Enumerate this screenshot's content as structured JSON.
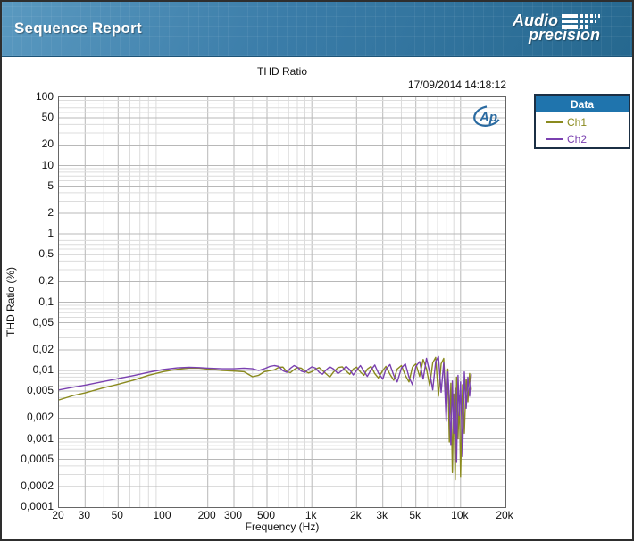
{
  "header": {
    "title": "Sequence Report",
    "brand_line1": "Audio",
    "brand_line2": "precision"
  },
  "chart": {
    "title": "THD Ratio",
    "timestamp": "17/09/2014 14:18:12",
    "ylabel": "THD Ratio (%)",
    "xlabel": "Frequency (Hz)",
    "watermark": "Ap"
  },
  "legend": {
    "title": "Data",
    "entries": [
      {
        "label": "Ch1",
        "color": "#8a8a1e"
      },
      {
        "label": "Ch2",
        "color": "#7a40b0"
      }
    ]
  },
  "colors": {
    "accent_blue": "#1f74ad",
    "grid_minor": "#dcdcdc",
    "grid_major": "#b8b8b8",
    "plot_border": "#666666",
    "watermark_blue": "#2a6aa0"
  },
  "chart_data": {
    "type": "line",
    "title": "THD Ratio",
    "xlabel": "Frequency (Hz)",
    "ylabel": "THD Ratio (%)",
    "x_scale": "log",
    "y_scale": "log",
    "xlim": [
      20,
      20000
    ],
    "ylim": [
      0.0001,
      100
    ],
    "grid": true,
    "legend_position": "outside-right",
    "x_ticks": [
      [
        20,
        "20"
      ],
      [
        30,
        "30"
      ],
      [
        50,
        "50"
      ],
      [
        100,
        "100"
      ],
      [
        200,
        "200"
      ],
      [
        300,
        "300"
      ],
      [
        500,
        "500"
      ],
      [
        1000,
        "1k"
      ],
      [
        2000,
        "2k"
      ],
      [
        3000,
        "3k"
      ],
      [
        5000,
        "5k"
      ],
      [
        10000,
        "10k"
      ],
      [
        20000,
        "20k"
      ]
    ],
    "y_ticks": [
      [
        100,
        "100"
      ],
      [
        50,
        "50"
      ],
      [
        20,
        "20"
      ],
      [
        10,
        "10"
      ],
      [
        5,
        "5"
      ],
      [
        2,
        "2"
      ],
      [
        1,
        "1"
      ],
      [
        0.5,
        "0,5"
      ],
      [
        0.2,
        "0,2"
      ],
      [
        0.1,
        "0,1"
      ],
      [
        0.05,
        "0,05"
      ],
      [
        0.02,
        "0,02"
      ],
      [
        0.01,
        "0,01"
      ],
      [
        0.005,
        "0,005"
      ],
      [
        0.002,
        "0,002"
      ],
      [
        0.001,
        "0,001"
      ],
      [
        0.0005,
        "0,0005"
      ],
      [
        0.0002,
        "0,0002"
      ],
      [
        0.0001,
        "0,0001"
      ]
    ],
    "series": [
      {
        "name": "Ch1",
        "color": "#8a8a1e",
        "points": [
          [
            20,
            0.0037
          ],
          [
            25,
            0.0043
          ],
          [
            30,
            0.0047
          ],
          [
            40,
            0.0056
          ],
          [
            50,
            0.0063
          ],
          [
            63,
            0.0072
          ],
          [
            80,
            0.0085
          ],
          [
            100,
            0.0096
          ],
          [
            125,
            0.0104
          ],
          [
            150,
            0.0108
          ],
          [
            175,
            0.0108
          ],
          [
            200,
            0.0105
          ],
          [
            250,
            0.01
          ],
          [
            300,
            0.0098
          ],
          [
            350,
            0.0096
          ],
          [
            400,
            0.0081
          ],
          [
            440,
            0.0085
          ],
          [
            480,
            0.0096
          ],
          [
            520,
            0.0099
          ],
          [
            560,
            0.0102
          ],
          [
            600,
            0.0111
          ],
          [
            640,
            0.0112
          ],
          [
            680,
            0.0096
          ],
          [
            720,
            0.0093
          ],
          [
            760,
            0.0103
          ],
          [
            800,
            0.011
          ],
          [
            850,
            0.0108
          ],
          [
            900,
            0.0098
          ],
          [
            950,
            0.0092
          ],
          [
            1000,
            0.0096
          ],
          [
            1060,
            0.0105
          ],
          [
            1120,
            0.011
          ],
          [
            1180,
            0.01
          ],
          [
            1250,
            0.0089
          ],
          [
            1320,
            0.008
          ],
          [
            1400,
            0.0095
          ],
          [
            1500,
            0.011
          ],
          [
            1600,
            0.0113
          ],
          [
            1700,
            0.0098
          ],
          [
            1800,
            0.0088
          ],
          [
            1900,
            0.0105
          ],
          [
            2000,
            0.0112
          ],
          [
            2120,
            0.0095
          ],
          [
            2240,
            0.0085
          ],
          [
            2360,
            0.0105
          ],
          [
            2500,
            0.0115
          ],
          [
            2650,
            0.009
          ],
          [
            2800,
            0.0078
          ],
          [
            3000,
            0.01
          ],
          [
            3150,
            0.0115
          ],
          [
            3350,
            0.0088
          ],
          [
            3550,
            0.0072
          ],
          [
            3750,
            0.0105
          ],
          [
            4000,
            0.0118
          ],
          [
            4250,
            0.0085
          ],
          [
            4500,
            0.0068
          ],
          [
            4750,
            0.0112
          ],
          [
            5000,
            0.0125
          ],
          [
            5300,
            0.0082
          ],
          [
            5600,
            0.0145
          ],
          [
            5900,
            0.0105
          ],
          [
            6200,
            0.006
          ],
          [
            6500,
            0.013
          ],
          [
            6800,
            0.0155
          ],
          [
            7100,
            0.0042
          ],
          [
            7400,
            0.0125
          ],
          [
            7700,
            0.015
          ],
          [
            8000,
            0.0028
          ],
          [
            8200,
            0.0105
          ],
          [
            8400,
            0.0009
          ],
          [
            8600,
            0.0065
          ],
          [
            8800,
            0.00032
          ],
          [
            9000,
            0.0045
          ],
          [
            9200,
            0.00025
          ],
          [
            9400,
            0.008
          ],
          [
            9600,
            0.001
          ],
          [
            9800,
            0.0042
          ],
          [
            10000,
            0.00028
          ],
          [
            10300,
            0.0062
          ],
          [
            10600,
            0.0012
          ],
          [
            10900,
            0.0075
          ],
          [
            11200,
            0.0035
          ],
          [
            11500,
            0.009
          ],
          [
            11800,
            0.0052
          ]
        ]
      },
      {
        "name": "Ch2",
        "color": "#7a40b0",
        "points": [
          [
            20,
            0.0052
          ],
          [
            25,
            0.0057
          ],
          [
            30,
            0.0061
          ],
          [
            40,
            0.0069
          ],
          [
            50,
            0.0076
          ],
          [
            63,
            0.0084
          ],
          [
            80,
            0.0094
          ],
          [
            100,
            0.0103
          ],
          [
            125,
            0.0109
          ],
          [
            150,
            0.0111
          ],
          [
            175,
            0.011
          ],
          [
            200,
            0.0108
          ],
          [
            250,
            0.0106
          ],
          [
            300,
            0.0106
          ],
          [
            350,
            0.0108
          ],
          [
            400,
            0.0106
          ],
          [
            440,
            0.01
          ],
          [
            480,
            0.0106
          ],
          [
            520,
            0.0114
          ],
          [
            560,
            0.0118
          ],
          [
            600,
            0.0115
          ],
          [
            640,
            0.0099
          ],
          [
            680,
            0.0094
          ],
          [
            720,
            0.0108
          ],
          [
            760,
            0.0118
          ],
          [
            800,
            0.0112
          ],
          [
            850,
            0.0098
          ],
          [
            900,
            0.0094
          ],
          [
            950,
            0.0105
          ],
          [
            1000,
            0.0113
          ],
          [
            1060,
            0.0108
          ],
          [
            1120,
            0.0094
          ],
          [
            1180,
            0.0088
          ],
          [
            1250,
            0.0102
          ],
          [
            1320,
            0.0113
          ],
          [
            1400,
            0.0105
          ],
          [
            1500,
            0.009
          ],
          [
            1600,
            0.01
          ],
          [
            1700,
            0.0115
          ],
          [
            1800,
            0.0102
          ],
          [
            1900,
            0.0086
          ],
          [
            2000,
            0.01
          ],
          [
            2120,
            0.0118
          ],
          [
            2240,
            0.0098
          ],
          [
            2360,
            0.0082
          ],
          [
            2500,
            0.0102
          ],
          [
            2650,
            0.012
          ],
          [
            2800,
            0.0092
          ],
          [
            3000,
            0.0075
          ],
          [
            3150,
            0.0105
          ],
          [
            3350,
            0.0122
          ],
          [
            3550,
            0.0085
          ],
          [
            3750,
            0.0068
          ],
          [
            4000,
            0.0108
          ],
          [
            4250,
            0.0125
          ],
          [
            4500,
            0.008
          ],
          [
            4750,
            0.0062
          ],
          [
            5000,
            0.0115
          ],
          [
            5300,
            0.0135
          ],
          [
            5600,
            0.0075
          ],
          [
            5900,
            0.015
          ],
          [
            6200,
            0.0095
          ],
          [
            6500,
            0.0052
          ],
          [
            6800,
            0.0135
          ],
          [
            7100,
            0.016
          ],
          [
            7400,
            0.0048
          ],
          [
            7700,
            0.013
          ],
          [
            8000,
            0.0018
          ],
          [
            8200,
            0.0095
          ],
          [
            8400,
            0.0038
          ],
          [
            8600,
            0.0008
          ],
          [
            8800,
            0.007
          ],
          [
            9000,
            0.0012
          ],
          [
            9200,
            0.0055
          ],
          [
            9400,
            0.00045
          ],
          [
            9600,
            0.0085
          ],
          [
            9800,
            0.0022
          ],
          [
            10000,
            0.0068
          ],
          [
            10300,
            0.00055
          ],
          [
            10600,
            0.0095
          ],
          [
            10900,
            0.0028
          ],
          [
            11200,
            0.008
          ],
          [
            11500,
            0.0042
          ],
          [
            11800,
            0.0088
          ]
        ]
      }
    ]
  }
}
